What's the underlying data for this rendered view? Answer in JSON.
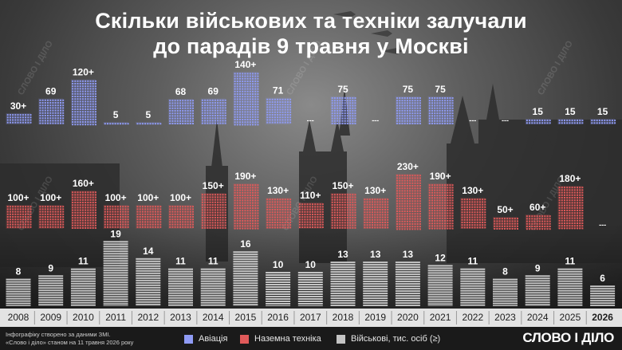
{
  "title": [
    "Скільки військових та техніки залучали",
    "до парадів 9 травня у Москві"
  ],
  "chart_data": {
    "type": "bar",
    "categories": [
      "2008",
      "2009",
      "2010",
      "2011",
      "2012",
      "2013",
      "2014",
      "2015",
      "2016",
      "2017",
      "2018",
      "2019",
      "2020",
      "2021",
      "2022",
      "2023",
      "2024",
      "2025",
      "2026"
    ],
    "series": [
      {
        "name": "Авіація",
        "values": [
          30,
          69,
          120,
          5,
          5,
          68,
          69,
          140,
          71,
          null,
          75,
          null,
          75,
          75,
          null,
          null,
          15,
          15,
          15
        ],
        "labels": [
          "30+",
          "69",
          "120+",
          "5",
          "5",
          "68",
          "69",
          "140+",
          "71",
          "---",
          "75",
          "---",
          "75",
          "75",
          "---",
          "---",
          "15",
          "15",
          "15"
        ]
      },
      {
        "name": "Наземна техніка",
        "values": [
          100,
          100,
          160,
          100,
          100,
          100,
          150,
          190,
          130,
          110,
          150,
          130,
          230,
          190,
          130,
          50,
          60,
          180,
          null
        ],
        "labels": [
          "100+",
          "100+",
          "160+",
          "100+",
          "100+",
          "100+",
          "150+",
          "190+",
          "130+",
          "110+",
          "150+",
          "130+",
          "230+",
          "190+",
          "130+",
          "50+",
          "60+",
          "180+",
          "---"
        ]
      },
      {
        "name": "Військові, тис. осіб (≥)",
        "values": [
          8,
          9,
          11,
          19,
          14,
          11,
          11,
          16,
          10,
          10,
          13,
          13,
          13,
          12,
          11,
          8,
          9,
          11,
          6
        ],
        "labels": [
          "8",
          "9",
          "11",
          "19",
          "14",
          "11",
          "11",
          "16",
          "10",
          "10",
          "13",
          "13",
          "13",
          "12",
          "11",
          "8",
          "9",
          "11",
          "6"
        ]
      }
    ],
    "colors": {
      "aviation": "#8f9bf5",
      "ground": "#e05a5a",
      "troops": "#c4c4c4"
    }
  },
  "legend": [
    {
      "label": "Авіація",
      "color": "#8f9bf5"
    },
    {
      "label": "Наземна техніка",
      "color": "#e05a5a"
    },
    {
      "label": "Військові, тис. осіб (≥)",
      "color": "#c4c4c4"
    }
  ],
  "credit": [
    "Інфографіку створено за даними ЗМІ.",
    "«Слово і діло» станом на 11 травня 2026 року"
  ],
  "brand": "СЛОВО І ДІЛО",
  "watermark": "СЛОВО І ДІЛО"
}
